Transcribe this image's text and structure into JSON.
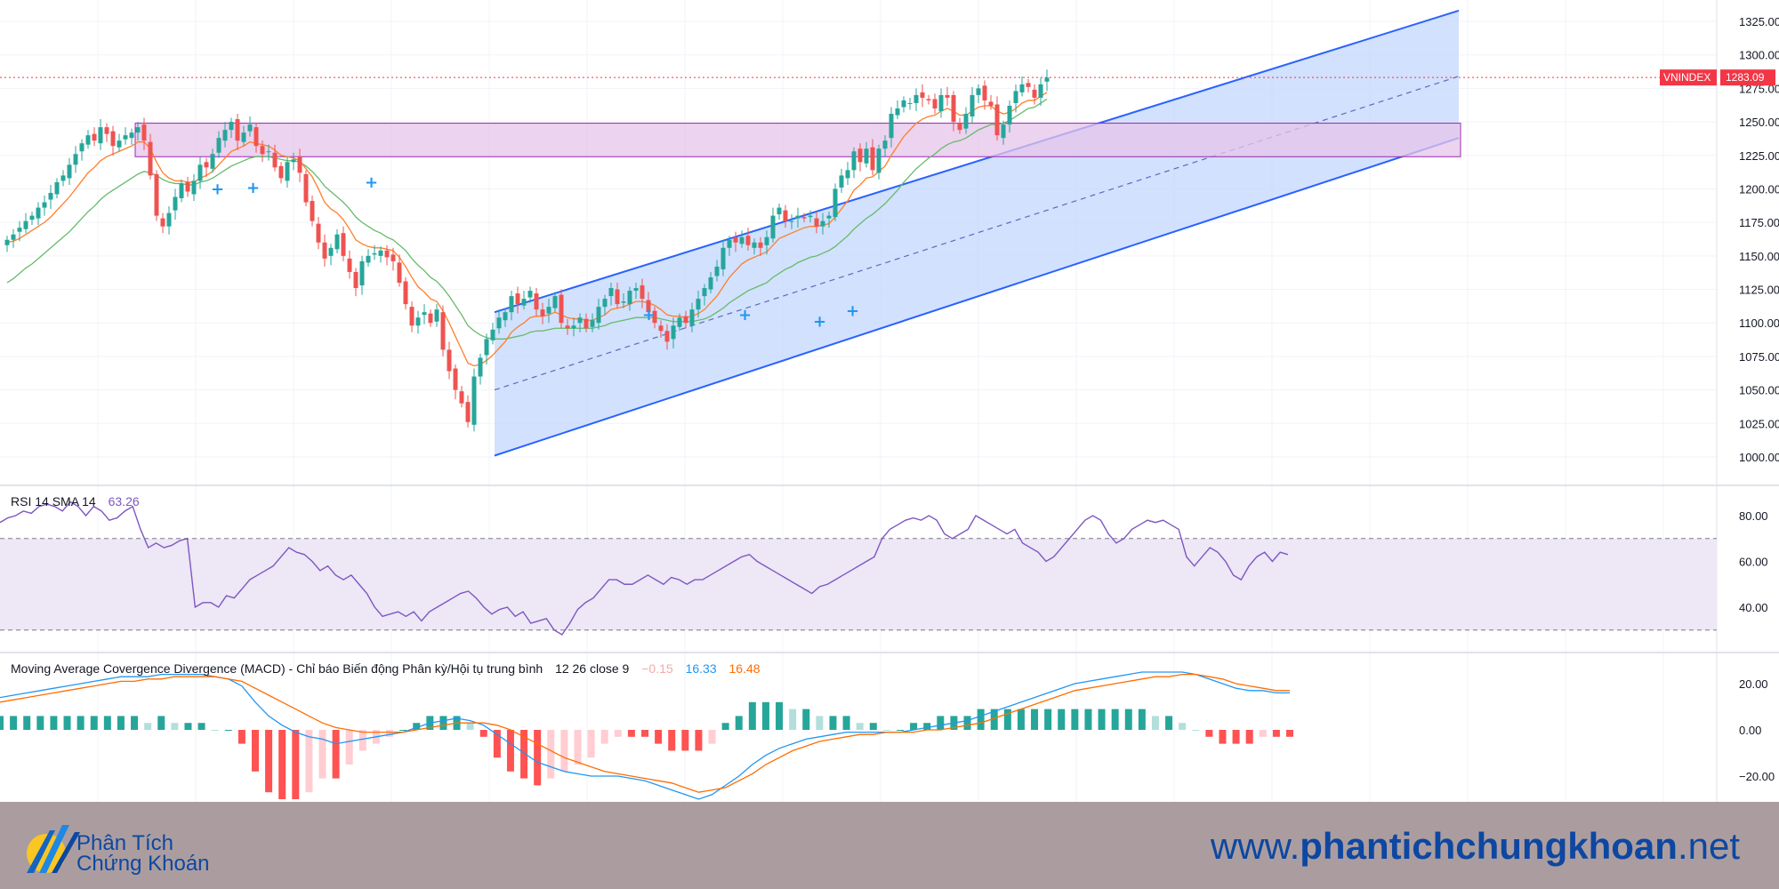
{
  "chart_data": {
    "type": "candlestick",
    "symbol": "VNINDEX",
    "last_price_label": "1283.09",
    "price_axis": {
      "ticks": [
        "1325.00",
        "1300.00",
        "1275.00",
        "1250.00",
        "1225.00",
        "1200.00",
        "1175.00",
        "1150.00",
        "1125.00",
        "1100.00",
        "1075.00",
        "1050.00",
        "1025.00",
        "1000.00"
      ],
      "ylim": [
        985,
        1338
      ]
    },
    "closes": [
      1162,
      1166,
      1171,
      1176,
      1180,
      1186,
      1190,
      1197,
      1205,
      1210,
      1218,
      1226,
      1234,
      1240,
      1236,
      1246,
      1241,
      1232,
      1236,
      1240,
      1242,
      1246,
      1236,
      1210,
      1180,
      1172,
      1182,
      1194,
      1204,
      1198,
      1206,
      1218,
      1216,
      1226,
      1238,
      1244,
      1250,
      1236,
      1242,
      1248,
      1232,
      1226,
      1228,
      1216,
      1208,
      1220,
      1222,
      1212,
      1190,
      1176,
      1160,
      1148,
      1156,
      1166,
      1150,
      1138,
      1126,
      1146,
      1150,
      1152,
      1154,
      1149,
      1146,
      1130,
      1114,
      1098,
      1104,
      1108,
      1100,
      1110,
      1080,
      1064,
      1050,
      1040,
      1026,
      1060,
      1074,
      1088,
      1095,
      1104,
      1108,
      1120,
      1114,
      1118,
      1124,
      1110,
      1105,
      1112,
      1120,
      1100,
      1096,
      1098,
      1104,
      1096,
      1102,
      1112,
      1118,
      1126,
      1114,
      1116,
      1124,
      1126,
      1118,
      1108,
      1100,
      1094,
      1086,
      1098,
      1104,
      1100,
      1110,
      1118,
      1126,
      1134,
      1142,
      1156,
      1162,
      1160,
      1164,
      1158,
      1160,
      1156,
      1164,
      1180,
      1186,
      1176,
      1176,
      1180,
      1178,
      1180,
      1172,
      1176,
      1180,
      1200,
      1210,
      1214,
      1228,
      1220,
      1230,
      1214,
      1230,
      1236,
      1256,
      1260,
      1266,
      1264,
      1270,
      1268,
      1266,
      1260,
      1270,
      1268,
      1250,
      1244,
      1256,
      1270,
      1275,
      1266,
      1262,
      1240,
      1248,
      1262,
      1273,
      1278,
      1276,
      1268,
      1278,
      1283
    ],
    "ema_fast": [
      1160,
      1161,
      1163,
      1166,
      1169,
      1172,
      1175,
      1179,
      1184,
      1189,
      1194,
      1200,
      1206,
      1212,
      1216,
      1221,
      1224,
      1226,
      1228,
      1230,
      1232,
      1235,
      1235,
      1230,
      1220,
      1212,
      1208,
      1206,
      1206,
      1205,
      1205,
      1208,
      1210,
      1213,
      1218,
      1223,
      1228,
      1230,
      1232,
      1235,
      1234,
      1233,
      1232,
      1229,
      1225,
      1224,
      1223,
      1221,
      1215,
      1209,
      1200,
      1190,
      1185,
      1182,
      1177,
      1170,
      1162,
      1159,
      1157,
      1156,
      1156,
      1155,
      1154,
      1149,
      1142,
      1134,
      1127,
      1123,
      1118,
      1116,
      1109,
      1100,
      1090,
      1080,
      1070,
      1068,
      1069,
      1072,
      1076,
      1081,
      1086,
      1093,
      1097,
      1100,
      1104,
      1105,
      1105,
      1106,
      1108,
      1106,
      1104,
      1103,
      1103,
      1102,
      1102,
      1104,
      1106,
      1110,
      1111,
      1112,
      1114,
      1116,
      1116,
      1115,
      1113,
      1110,
      1106,
      1105,
      1105,
      1104,
      1105,
      1107,
      1110,
      1115,
      1120,
      1127,
      1134,
      1139,
      1144,
      1147,
      1149,
      1151,
      1153,
      1158,
      1163,
      1165,
      1167,
      1169,
      1171,
      1172,
      1172,
      1173,
      1174,
      1179,
      1185,
      1191,
      1199,
      1203,
      1208,
      1209,
      1213,
      1217,
      1225,
      1232,
      1239,
      1244,
      1249,
      1252,
      1254,
      1255,
      1258,
      1260,
      1258,
      1255,
      1255,
      1258,
      1261,
      1262,
      1262,
      1258,
      1256,
      1257,
      1260,
      1264,
      1266,
      1266,
      1269,
      1272
    ],
    "ema_slow": [
      1130,
      1133,
      1137,
      1141,
      1144,
      1148,
      1152,
      1156,
      1160,
      1164,
      1168,
      1173,
      1178,
      1183,
      1187,
      1192,
      1196,
      1199,
      1202,
      1205,
      1208,
      1211,
      1213,
      1212,
      1210,
      1207,
      1205,
      1204,
      1204,
      1203,
      1203,
      1205,
      1206,
      1208,
      1211,
      1214,
      1217,
      1219,
      1221,
      1223,
      1224,
      1224,
      1224,
      1223,
      1222,
      1221,
      1221,
      1220,
      1217,
      1213,
      1208,
      1202,
      1198,
      1194,
      1190,
      1185,
      1179,
      1175,
      1172,
      1169,
      1167,
      1164,
      1162,
      1158,
      1154,
      1148,
      1143,
      1139,
      1134,
      1131,
      1126,
      1120,
      1113,
      1106,
      1098,
      1094,
      1091,
      1089,
      1088,
      1088,
      1088,
      1089,
      1090,
      1091,
      1093,
      1094,
      1094,
      1095,
      1096,
      1096,
      1096,
      1096,
      1096,
      1096,
      1096,
      1097,
      1098,
      1100,
      1101,
      1102,
      1103,
      1104,
      1104,
      1104,
      1104,
      1103,
      1102,
      1101,
      1101,
      1101,
      1101,
      1102,
      1103,
      1105,
      1108,
      1111,
      1115,
      1118,
      1121,
      1124,
      1126,
      1128,
      1130,
      1134,
      1137,
      1140,
      1142,
      1145,
      1147,
      1149,
      1150,
      1152,
      1154,
      1157,
      1161,
      1165,
      1170,
      1174,
      1178,
      1181,
      1185,
      1189,
      1194,
      1199,
      1205,
      1210,
      1215,
      1219,
      1223,
      1226,
      1230,
      1233,
      1235,
      1236,
      1238,
      1241,
      1244,
      1246,
      1248,
      1248,
      1249,
      1251,
      1254,
      1257,
      1260,
      1261,
      1264,
      1267
    ],
    "channel": {
      "upper_start": 1108,
      "upper_end": 1333,
      "lower_start": 1001,
      "lower_end": 1238,
      "mid_start": 1050,
      "mid_end": 1284
    },
    "resistance_zone": {
      "from": 1224,
      "to": 1249
    },
    "rsi": {
      "label": "RSI 14 SMA 14",
      "value_label": "63.26",
      "ticks": [
        "80.00",
        "60.00",
        "40.00"
      ],
      "ylim": [
        30,
        88
      ],
      "upper_band": 70,
      "lower_band": 30,
      "values": [
        77,
        79,
        80,
        82,
        81,
        84,
        85,
        84,
        82,
        86,
        84,
        80,
        84,
        82,
        78,
        79,
        82,
        84,
        74,
        66,
        68,
        66,
        67,
        69,
        70,
        40,
        42,
        42,
        40,
        45,
        44,
        48,
        52,
        54,
        56,
        58,
        62,
        66,
        64,
        63,
        60,
        56,
        58,
        54,
        52,
        54,
        50,
        46,
        40,
        36,
        37,
        38,
        36,
        38,
        34,
        38,
        40,
        42,
        44,
        46,
        47,
        44,
        40,
        37,
        39,
        40,
        36,
        38,
        33,
        34,
        35,
        30,
        28,
        33,
        39,
        42,
        44,
        48,
        52,
        52,
        50,
        50,
        52,
        54,
        52,
        50,
        53,
        52,
        50,
        52,
        52,
        54,
        56,
        58,
        60,
        62,
        63,
        60,
        58,
        56,
        54,
        52,
        50,
        48,
        46,
        49,
        50,
        52,
        54,
        56,
        58,
        60,
        62,
        70,
        74,
        76,
        78,
        79,
        78,
        80,
        78,
        72,
        70,
        72,
        74,
        80,
        78,
        76,
        74,
        72,
        74,
        68,
        66,
        64,
        60,
        62,
        66,
        70,
        74,
        78,
        80,
        78,
        72,
        68,
        70,
        74,
        76,
        78,
        77,
        78,
        76,
        74,
        62,
        58,
        62,
        66,
        64,
        60,
        54,
        52,
        58,
        62,
        64,
        60,
        64,
        63
      ],
      "x_start": 0
    },
    "macd": {
      "label": "Moving Average Covergence Divergence (MACD) - Chỉ báo Biến động Phân kỳ/Hội tụ trung bình",
      "params_label": "12 26 close 9",
      "hist_label": "−0.15",
      "macd_label": "16.33",
      "signal_label": "16.48",
      "ticks": [
        "20.00",
        "0.00",
        "−20.00"
      ],
      "ylim": [
        -30,
        30
      ],
      "macd_values": [
        14,
        15,
        16,
        17,
        18,
        19,
        20,
        21,
        22,
        23,
        23,
        23,
        24,
        24,
        24,
        24,
        23,
        22,
        19,
        12,
        6,
        2,
        -1,
        -3,
        -4,
        -6,
        -5,
        -4,
        -3,
        -2,
        -1,
        1,
        3,
        4,
        5,
        4,
        2,
        -2,
        -6,
        -10,
        -14,
        -16,
        -18,
        -19,
        -20,
        -20,
        -20,
        -21,
        -22,
        -24,
        -26,
        -28,
        -30,
        -28,
        -24,
        -20,
        -15,
        -11,
        -8,
        -6,
        -4,
        -3,
        -2,
        -1,
        -1,
        -1,
        -1,
        -1,
        0,
        1,
        2,
        3,
        4,
        6,
        8,
        10,
        12,
        14,
        16,
        18,
        20,
        21,
        22,
        23,
        24,
        25,
        25,
        25,
        25,
        24,
        22,
        20,
        18,
        17,
        17,
        16,
        16
      ],
      "signal_values": [
        12,
        13,
        14,
        15,
        16,
        17,
        18,
        19,
        20,
        21,
        21,
        22,
        22,
        23,
        23,
        23,
        23,
        22,
        21,
        18,
        15,
        12,
        9,
        6,
        3,
        1,
        0,
        -1,
        -1,
        -1,
        -1,
        0,
        1,
        2,
        3,
        3,
        3,
        2,
        0,
        -3,
        -6,
        -9,
        -12,
        -14,
        -16,
        -18,
        -19,
        -20,
        -21,
        -22,
        -23,
        -25,
        -27,
        -26,
        -25,
        -22,
        -19,
        -15,
        -12,
        -9,
        -7,
        -5,
        -4,
        -3,
        -2,
        -2,
        -1,
        -1,
        -1,
        0,
        0,
        1,
        2,
        3,
        5,
        7,
        9,
        11,
        13,
        15,
        17,
        18,
        19,
        20,
        21,
        22,
        23,
        23,
        24,
        24,
        23,
        22,
        20,
        19,
        18,
        17,
        17
      ]
    },
    "x_labels": []
  },
  "footer": {
    "brand_line1": "Phân Tích",
    "brand_line2": "Chứng Khoán",
    "website_prefix": "www.",
    "website_bold": "phantichchungkhoan",
    "website_suffix": ".net"
  },
  "colors": {
    "up": "#26a69a",
    "down": "#ef5350",
    "ema_fast": "#ff7f2a",
    "ema_slow": "#66bb6a",
    "channel_line": "#2962ff",
    "channel_fill": "#c7dafd",
    "zone_fill": "#e6c4ea",
    "zone_border": "#9c27b0",
    "rsi_line": "#7e57c2",
    "rsi_band": "#ede7f6",
    "macd_line": "#2196f3",
    "signal_line": "#ff6d00",
    "label_bg": "#f23645",
    "footer_bg": "#ab9d9f"
  }
}
